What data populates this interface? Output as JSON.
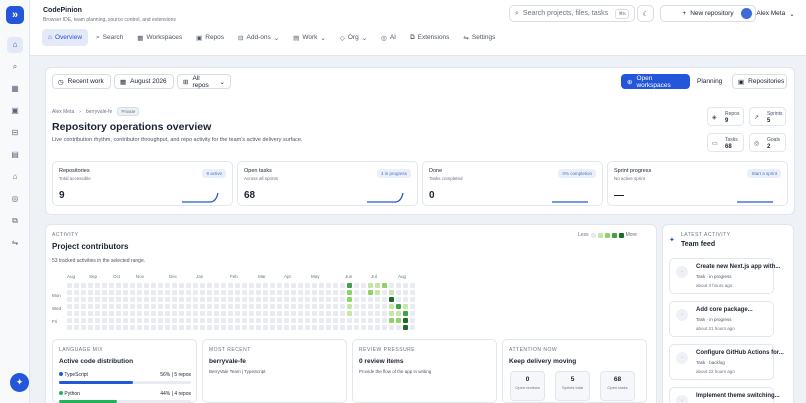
{
  "app": {
    "name": "CodePinion",
    "subtitle": "Browser IDE, team planning, source control, and extensions"
  },
  "search": {
    "placeholder": "Search projects, files, tasks",
    "shortcut": "⌘K"
  },
  "header": {
    "new_repo": "New repository",
    "user": "Alex Meta"
  },
  "nav": [
    {
      "label": "Overview",
      "icon": "home-icon"
    },
    {
      "label": "Search",
      "icon": "search-icon"
    },
    {
      "label": "Workspaces",
      "icon": "grid-icon"
    },
    {
      "label": "Repos",
      "icon": "repo-icon"
    },
    {
      "label": "Add-ons",
      "icon": "addon-icon"
    },
    {
      "label": "Work",
      "icon": "work-icon"
    },
    {
      "label": "Org",
      "icon": "org-icon"
    },
    {
      "label": "AI",
      "icon": "ai-icon"
    },
    {
      "label": "Extensions",
      "icon": "extensions-icon"
    },
    {
      "label": "Settings",
      "icon": "settings-icon"
    }
  ],
  "toolbar": {
    "recent": "Recent work",
    "month": "August 2026",
    "repos": "All repos",
    "open_ws": "Open workspaces",
    "planning": "Planning",
    "repositories": "Repositories"
  },
  "breadcrumb": {
    "user": "Alex Meta",
    "repo": "berryvale-fe",
    "visibility": "Private"
  },
  "overview": {
    "title": "Repository operations overview",
    "subtitle": "Live contribution rhythm, contributor throughput, and repo activity for the team's active delivery surface."
  },
  "mini_stats": [
    {
      "label": "Repos",
      "value": "9"
    },
    {
      "label": "Sprints",
      "value": "5"
    },
    {
      "label": "Tasks",
      "value": "68"
    },
    {
      "label": "Goals",
      "value": "2"
    }
  ],
  "stats": [
    {
      "label": "Repositories",
      "sub": "Total accessible",
      "value": "9",
      "tag": "9 active"
    },
    {
      "label": "Open tasks",
      "sub": "Across all sprints",
      "value": "68",
      "tag": "4 in progress"
    },
    {
      "label": "Done",
      "sub": "Tasks completed",
      "value": "0",
      "tag": "0% completion"
    },
    {
      "label": "Sprint progress",
      "sub": "No active sprint",
      "value": "—",
      "tag": "Start a sprint"
    }
  ],
  "activity": {
    "label": "ACTIVITY",
    "title": "Project contributors",
    "sub": "53 tracked activities in the selected range.",
    "less": "Less",
    "more": "More",
    "months": [
      "Aug",
      "Sep",
      "Oct",
      "Nov",
      "Dec",
      "Jan",
      "Feb",
      "Mar",
      "Apr",
      "May",
      "Jun",
      "Jul",
      "Aug"
    ],
    "days": [
      "Mon",
      "Wed",
      "Fri"
    ]
  },
  "language": {
    "label": "LANGUAGE MIX",
    "title": "Active code distribution",
    "items": [
      {
        "name": "TypeScript",
        "stat": "56% | 5 repos",
        "pct": 56,
        "color": "#2356d8"
      },
      {
        "name": "Python",
        "stat": "44% | 4 repos",
        "pct": 44,
        "color": "#22b35a"
      }
    ]
  },
  "recent": {
    "label": "MOST RECENT",
    "title": "berryvale-fe",
    "sub": "BerryVale Team | TypeScript"
  },
  "pressure": {
    "label": "REVIEW PRESSURE",
    "title": "0 review items",
    "sub": "Provide the flow of the app in writing"
  },
  "attention": {
    "label": "ATTENTION NOW",
    "title": "Keep delivery moving",
    "boxes": [
      {
        "value": "0",
        "label": "Open reviews"
      },
      {
        "value": "5",
        "label": "Sprints total"
      },
      {
        "value": "68",
        "label": "Open tasks"
      }
    ]
  },
  "feed": {
    "label": "LATEST ACTIVITY",
    "title": "Team feed",
    "items": [
      {
        "title": "Create new Next.js app with...",
        "meta": "Task · in progress",
        "ago": "about 3 hours ago"
      },
      {
        "title": "Add core package...",
        "meta": "Task · in progress",
        "ago": "about 21 hours ago"
      },
      {
        "title": "Configure GitHub Actions for...",
        "meta": "Task · backlog",
        "ago": "about 22 hours ago"
      },
      {
        "title": "Implement theme switching...",
        "meta": "",
        "ago": ""
      }
    ]
  },
  "colors": {
    "accent": "#2356d8",
    "heat": [
      "#e8ebf1",
      "#c6e6a8",
      "#8fd16a",
      "#3fa14a",
      "#1d6b2a"
    ]
  }
}
